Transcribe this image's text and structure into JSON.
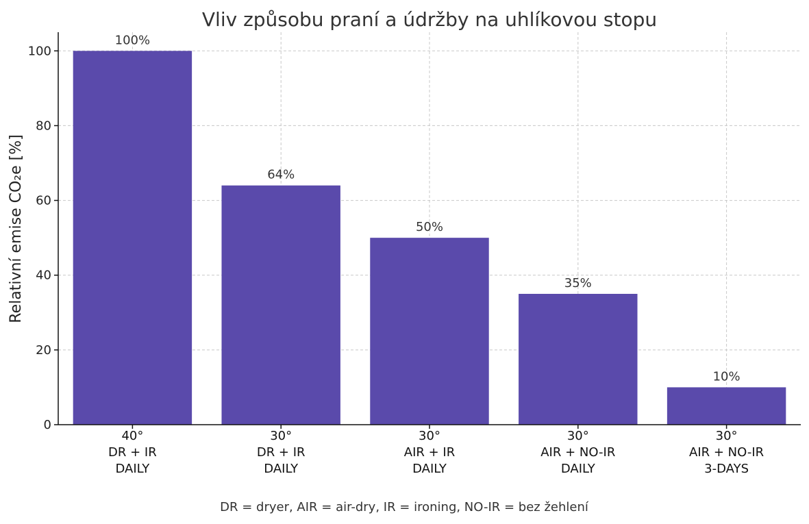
{
  "chart_data": {
    "type": "bar",
    "title": "Vliv způsobu praní a údržby na uhlíkovou stopu",
    "ylabel": "Relativní emise CO₂e [%]",
    "xlabel": "",
    "ylim": [
      0,
      105
    ],
    "yticks": [
      0,
      20,
      40,
      60,
      80,
      100
    ],
    "grid": true,
    "categories": [
      [
        "40°",
        "DR + IR",
        "DAILY"
      ],
      [
        "30°",
        "DR + IR",
        "DAILY"
      ],
      [
        "30°",
        "AIR + IR",
        "DAILY"
      ],
      [
        "30°",
        "AIR + NO-IR",
        "DAILY"
      ],
      [
        "30°",
        "AIR + NO-IR",
        "3-DAYS"
      ]
    ],
    "values": [
      100,
      64,
      50,
      35,
      10
    ],
    "data_labels": [
      "100%",
      "64%",
      "50%",
      "35%",
      "10%"
    ],
    "bar_color": "#5a4aab",
    "footnote": "DR = dryer, AIR = air-dry, IR = ironing, NO-IR = bez žehlení"
  }
}
